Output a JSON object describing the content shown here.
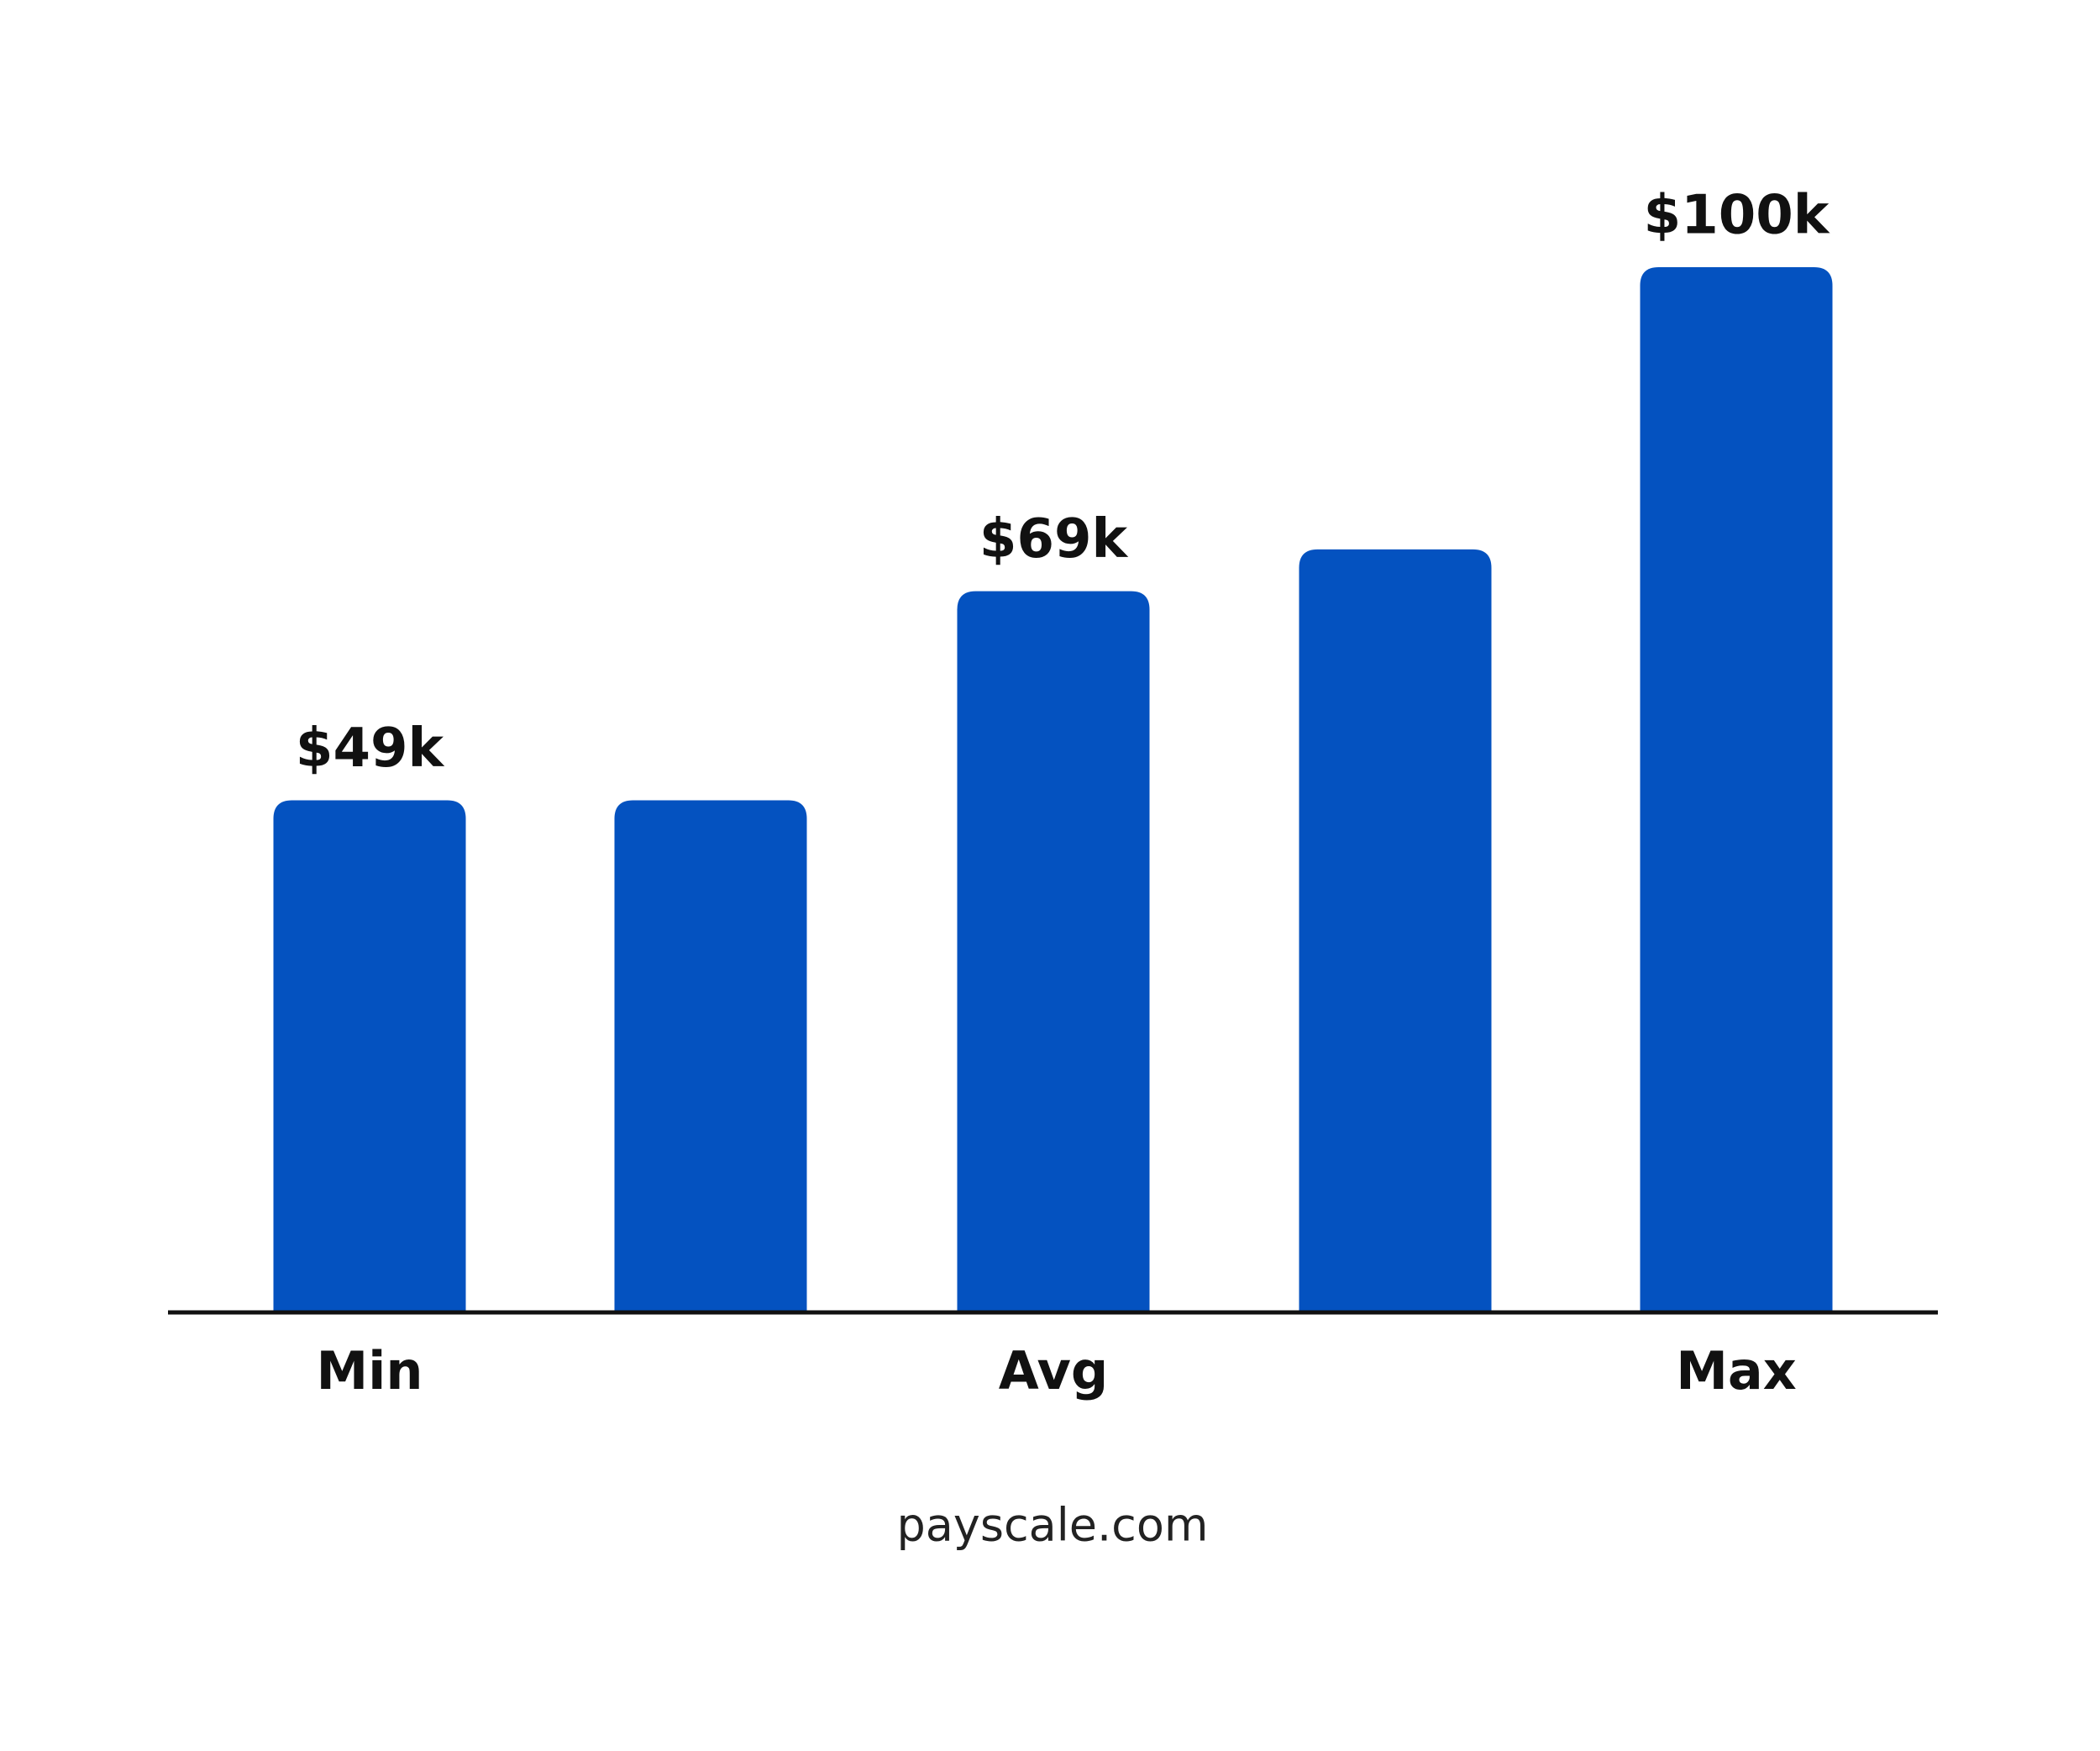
{
  "chart_data": {
    "type": "bar",
    "categories": [
      "Min",
      null,
      "Avg",
      null,
      "Max"
    ],
    "values": [
      49,
      49,
      69,
      73,
      100
    ],
    "value_labels": [
      "$49k",
      null,
      "$69k",
      null,
      "$100k"
    ],
    "color": "#0452c0",
    "source": "payscale.com"
  }
}
